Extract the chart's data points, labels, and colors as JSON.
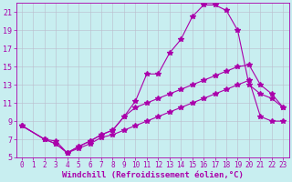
{
  "xlabel": "Windchill (Refroidissement éolien,°C)",
  "bg_color": "#c8eef0",
  "line_color": "#aa00aa",
  "grid_color": "#bbbbcc",
  "xlim": [
    -0.5,
    23.5
  ],
  "ylim": [
    5,
    22
  ],
  "xticks": [
    0,
    1,
    2,
    3,
    4,
    5,
    6,
    7,
    8,
    9,
    10,
    11,
    12,
    13,
    14,
    15,
    16,
    17,
    18,
    19,
    20,
    21,
    22,
    23
  ],
  "yticks": [
    5,
    7,
    9,
    11,
    13,
    15,
    17,
    19,
    21
  ],
  "curve1_x": [
    0,
    2,
    3,
    4,
    5,
    6,
    7,
    8,
    9,
    10,
    11,
    12,
    13,
    14,
    15,
    16,
    17,
    18,
    19,
    20,
    21,
    22,
    23
  ],
  "curve1_y": [
    8.5,
    7.0,
    6.5,
    5.5,
    6.2,
    6.8,
    7.5,
    8.0,
    9.5,
    11.2,
    14.2,
    14.2,
    16.5,
    18.0,
    20.5,
    21.8,
    21.8,
    21.2,
    19.0,
    13.0,
    12.0,
    11.5,
    10.5
  ],
  "curve2_x": [
    0,
    2,
    3,
    4,
    5,
    6,
    7,
    8,
    9,
    10,
    11,
    12,
    13,
    14,
    15,
    16,
    17,
    18,
    19,
    20,
    21,
    22,
    23
  ],
  "curve2_y": [
    8.5,
    7.0,
    6.5,
    5.5,
    6.2,
    6.8,
    7.5,
    8.0,
    9.5,
    10.5,
    11.0,
    11.5,
    12.0,
    12.5,
    13.0,
    13.5,
    14.0,
    14.5,
    15.0,
    15.2,
    13.0,
    12.0,
    10.5
  ],
  "curve3_x": [
    0,
    2,
    3,
    4,
    5,
    6,
    7,
    8,
    9,
    10,
    11,
    12,
    13,
    14,
    15,
    16,
    17,
    18,
    19,
    20,
    21,
    22,
    23
  ],
  "curve3_y": [
    8.5,
    7.0,
    6.8,
    5.5,
    6.0,
    6.5,
    7.2,
    7.5,
    8.0,
    8.5,
    9.0,
    9.5,
    10.0,
    10.5,
    11.0,
    11.5,
    12.0,
    12.5,
    13.0,
    13.5,
    9.5,
    9.0,
    9.0
  ],
  "marker": "*",
  "markersize": 4,
  "linewidth": 0.8,
  "tick_fontsize": 5.5,
  "xlabel_fontsize": 6.5
}
